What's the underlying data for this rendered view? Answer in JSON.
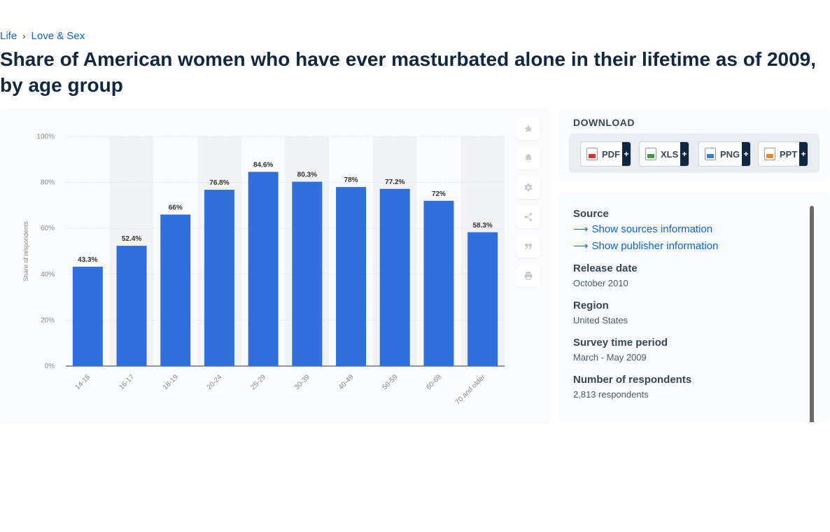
{
  "breadcrumb": {
    "items": [
      "Life",
      "Love & Sex"
    ],
    "separator": "›"
  },
  "page_title": "Share of American women who have ever masturbated alone in their lifetime as of 2009, by age group",
  "chart_data": {
    "type": "bar",
    "categories": [
      "14-15",
      "16-17",
      "18-19",
      "20-24",
      "25-29",
      "30-39",
      "40-49",
      "50-59",
      "60-69",
      "70 and older"
    ],
    "values": [
      43.3,
      52.4,
      66,
      76.8,
      84.6,
      80.3,
      78,
      77.2,
      72,
      58.3
    ],
    "value_labels": [
      "43.3%",
      "52.4%",
      "66%",
      "76.8%",
      "84.6%",
      "80.3%",
      "78%",
      "77.2%",
      "72%",
      "58.3%"
    ],
    "ylabel": "Share of respondents",
    "xlabel": "",
    "ylim": [
      0,
      100
    ],
    "yticks": [
      0,
      20,
      40,
      60,
      80,
      100
    ],
    "ytick_labels": [
      "0%",
      "20%",
      "40%",
      "60%",
      "80%",
      "100%"
    ],
    "bar_color": "#3070dc",
    "grid": true
  },
  "toolbar": {
    "icons": [
      "star-icon",
      "bell-icon",
      "gear-icon",
      "share-icon",
      "quote-icon",
      "print-icon"
    ]
  },
  "download": {
    "title": "DOWNLOAD",
    "buttons": [
      {
        "label": "PDF",
        "color": "#d9342b"
      },
      {
        "label": "XLS",
        "color": "#3e9b3e"
      },
      {
        "label": "PNG",
        "color": "#3a7fc8"
      },
      {
        "label": "PPT",
        "color": "#e8862e"
      }
    ],
    "plus": "+"
  },
  "info": {
    "source_label": "Source",
    "show_sources": "Show sources information",
    "show_publisher": "Show publisher information",
    "release_date_label": "Release date",
    "release_date": "October 2010",
    "region_label": "Region",
    "region": "United States",
    "survey_period_label": "Survey time period",
    "survey_period": "March - May 2009",
    "respondents_label": "Number of respondents",
    "respondents": "2,813 respondents"
  }
}
